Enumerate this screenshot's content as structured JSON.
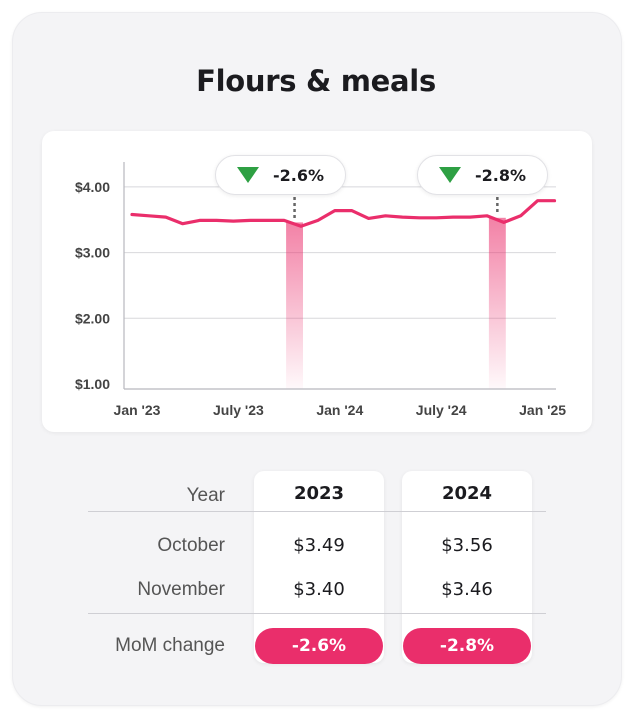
{
  "title": "Flours & meals",
  "chart_data": {
    "type": "line",
    "title": "Flours & meals",
    "xlabel": "",
    "ylabel": "",
    "x_ticks": [
      "Jan '23",
      "July '23",
      "Jan '24",
      "July '24",
      "Jan '25"
    ],
    "y_ticks": [
      "$1.00",
      "$2.00",
      "$3.00",
      "$4.00"
    ],
    "ylim": [
      1.0,
      4.3
    ],
    "grid": true,
    "line_color": "#ea2e6b",
    "series": [
      {
        "x": [
          "2023-01",
          "2023-02",
          "2023-03",
          "2023-04",
          "2023-05",
          "2023-06",
          "2023-07",
          "2023-08",
          "2023-09",
          "2023-10",
          "2023-11",
          "2023-12",
          "2024-01",
          "2024-02",
          "2024-03",
          "2024-04",
          "2024-05",
          "2024-06",
          "2024-07",
          "2024-08",
          "2024-09",
          "2024-10",
          "2024-11",
          "2024-12",
          "2025-01",
          "2025-02"
        ],
        "values": [
          3.58,
          3.56,
          3.54,
          3.44,
          3.49,
          3.49,
          3.48,
          3.49,
          3.49,
          3.49,
          3.4,
          3.49,
          3.64,
          3.64,
          3.52,
          3.56,
          3.54,
          3.53,
          3.53,
          3.54,
          3.54,
          3.56,
          3.46,
          3.56,
          3.79,
          3.79
        ]
      }
    ],
    "highlights": [
      {
        "from": "2023-10",
        "to": "2023-11",
        "change": "-2.6%"
      },
      {
        "from": "2024-10",
        "to": "2024-11",
        "change": "-2.8%"
      }
    ]
  },
  "callouts": [
    {
      "change": "-2.6%",
      "trend": "down"
    },
    {
      "change": "-2.8%",
      "trend": "down"
    }
  ],
  "table": {
    "year_label": "Year",
    "columns": [
      "2023",
      "2024"
    ],
    "rows": [
      {
        "label": "October",
        "values": [
          "$3.49",
          "$3.56"
        ]
      },
      {
        "label": "November",
        "values": [
          "$3.40",
          "$3.46"
        ]
      }
    ],
    "change_label": "MoM change",
    "changes": [
      "-2.6%",
      "-2.8%"
    ]
  },
  "colors": {
    "accent": "#ea2e6b",
    "down": "#2ea043"
  }
}
